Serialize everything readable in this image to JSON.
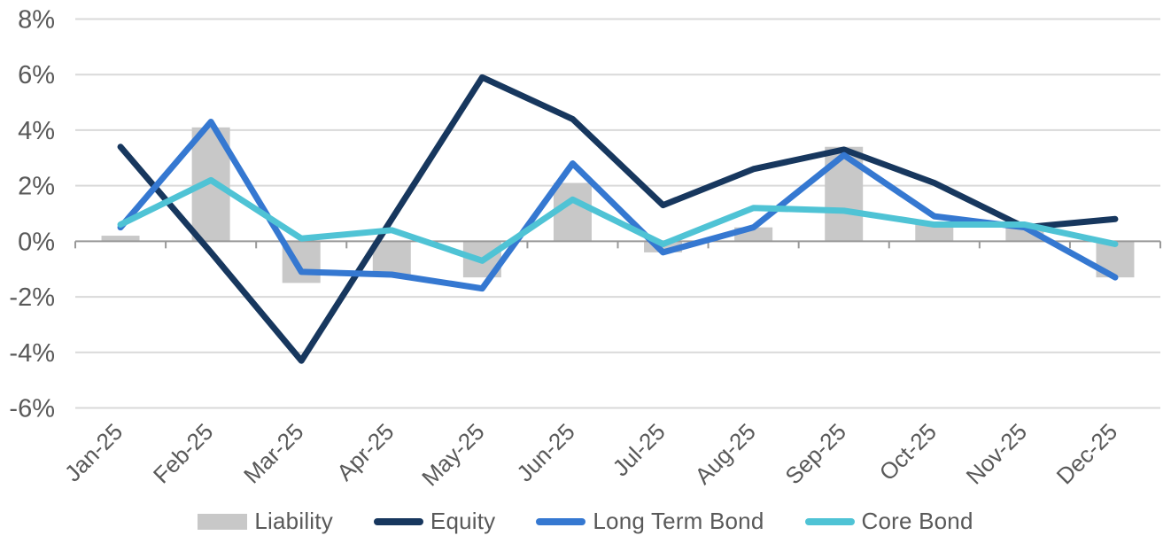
{
  "chart_data": {
    "type": "combo",
    "title": "",
    "x_categories": [
      "Jan-25",
      "Feb-25",
      "Mar-25",
      "Apr-25",
      "May-25",
      "Jun-25",
      "Jul-25",
      "Aug-25",
      "Sep-25",
      "Oct-25",
      "Nov-25",
      "Dec-25"
    ],
    "series": [
      {
        "name": "Liability",
        "type": "bar",
        "color": "#C8C8C8",
        "values": [
          0.2,
          4.1,
          -1.5,
          -1.2,
          -1.3,
          2.1,
          -0.4,
          0.5,
          3.4,
          0.6,
          0.5,
          -1.3
        ]
      },
      {
        "name": "Equity",
        "type": "line",
        "color": "#17375E",
        "values": [
          3.4,
          -0.4,
          -4.3,
          0.8,
          5.9,
          4.4,
          1.3,
          2.6,
          3.3,
          2.1,
          0.5,
          0.8
        ]
      },
      {
        "name": "Long Term Bond",
        "type": "line",
        "color": "#3578D1",
        "values": [
          0.5,
          4.3,
          -1.1,
          -1.2,
          -1.7,
          2.8,
          -0.4,
          0.5,
          3.1,
          0.9,
          0.5,
          -1.3
        ]
      },
      {
        "name": "Core Bond",
        "type": "line",
        "color": "#4FC3D5",
        "values": [
          0.6,
          2.2,
          0.1,
          0.4,
          -0.7,
          1.5,
          -0.1,
          1.2,
          1.1,
          0.6,
          0.6,
          -0.1
        ]
      }
    ],
    "y_axis": {
      "min": -6,
      "max": 8,
      "step": 2,
      "tick_labels": [
        "8%",
        "6%",
        "4%",
        "2%",
        "0%",
        "-2%",
        "-4%",
        "-6%"
      ]
    },
    "grid": true,
    "legend_position": "bottom",
    "colors": {
      "gridline": "#D9D9D9",
      "zero_axis": "#999999",
      "axis_text": "#595959",
      "background": "#FFFFFF"
    }
  }
}
